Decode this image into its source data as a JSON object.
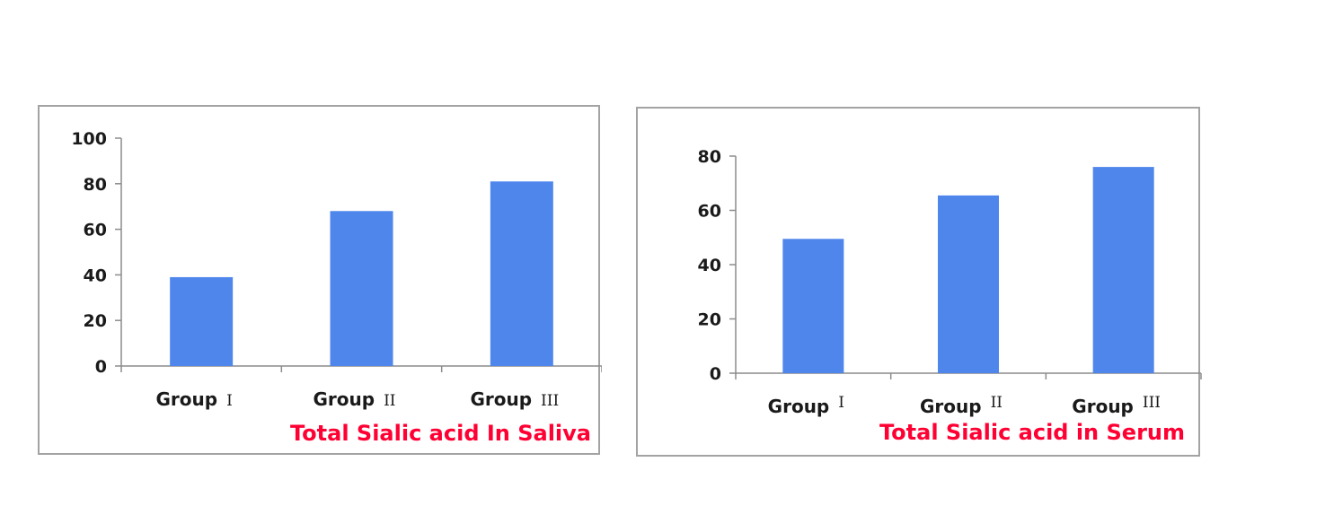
{
  "colors": {
    "bar": "#4f86ec",
    "title": "#ff0033",
    "axis": "#8c8c8c"
  },
  "chart_data": [
    {
      "type": "bar",
      "title": "Total Sialic acid In Saliva",
      "categories": [
        {
          "word": "Group",
          "numeral": "I"
        },
        {
          "word": "Group",
          "numeral": "II"
        },
        {
          "word": "Group",
          "numeral": "III"
        }
      ],
      "values": [
        39,
        68,
        81
      ],
      "ylim": [
        0,
        100
      ],
      "yticks": [
        "0",
        "20",
        "40",
        "60",
        "80",
        "100"
      ],
      "grid": false,
      "legend": "none"
    },
    {
      "type": "bar",
      "title": "Total Sialic acid in Serum",
      "categories": [
        {
          "word": "Group",
          "numeral": "I"
        },
        {
          "word": "Group",
          "numeral": "II"
        },
        {
          "word": "Group",
          "numeral": "III"
        }
      ],
      "values": [
        49.5,
        65.5,
        76
      ],
      "ylim": [
        0,
        80
      ],
      "yticks": [
        "0",
        "20",
        "40",
        "60",
        "80"
      ],
      "grid": false,
      "legend": "none"
    }
  ]
}
